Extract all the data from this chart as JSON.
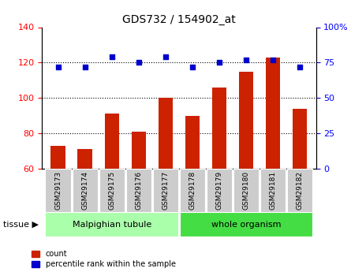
{
  "title": "GDS732 / 154902_at",
  "samples": [
    "GSM29173",
    "GSM29174",
    "GSM29175",
    "GSM29176",
    "GSM29177",
    "GSM29178",
    "GSM29179",
    "GSM29180",
    "GSM29181",
    "GSM29182"
  ],
  "counts": [
    73,
    71,
    91,
    81,
    100,
    90,
    106,
    115,
    123,
    94
  ],
  "percentiles": [
    72,
    72,
    79,
    75,
    79,
    72,
    75,
    77,
    77,
    72
  ],
  "bar_color": "#cc2200",
  "dot_color": "#0000cc",
  "left_ylim": [
    60,
    140
  ],
  "left_yticks": [
    60,
    80,
    100,
    120,
    140
  ],
  "right_ylim": [
    0,
    100
  ],
  "right_yticks": [
    0,
    25,
    50,
    75,
    100
  ],
  "right_yticklabels": [
    "0",
    "25",
    "50",
    "75",
    "100%"
  ],
  "grid_values": [
    80,
    100,
    120
  ],
  "tissue_label": "tissue",
  "legend_count_label": "count",
  "legend_pct_label": "percentile rank within the sample",
  "bg_color": "#ffffff",
  "tick_label_bg": "#cccccc",
  "group1_label": "Malpighian tubule",
  "group2_label": "whole organism",
  "group1_color": "#aaffaa",
  "group2_color": "#44dd44",
  "group1_count": 5,
  "group2_count": 5
}
